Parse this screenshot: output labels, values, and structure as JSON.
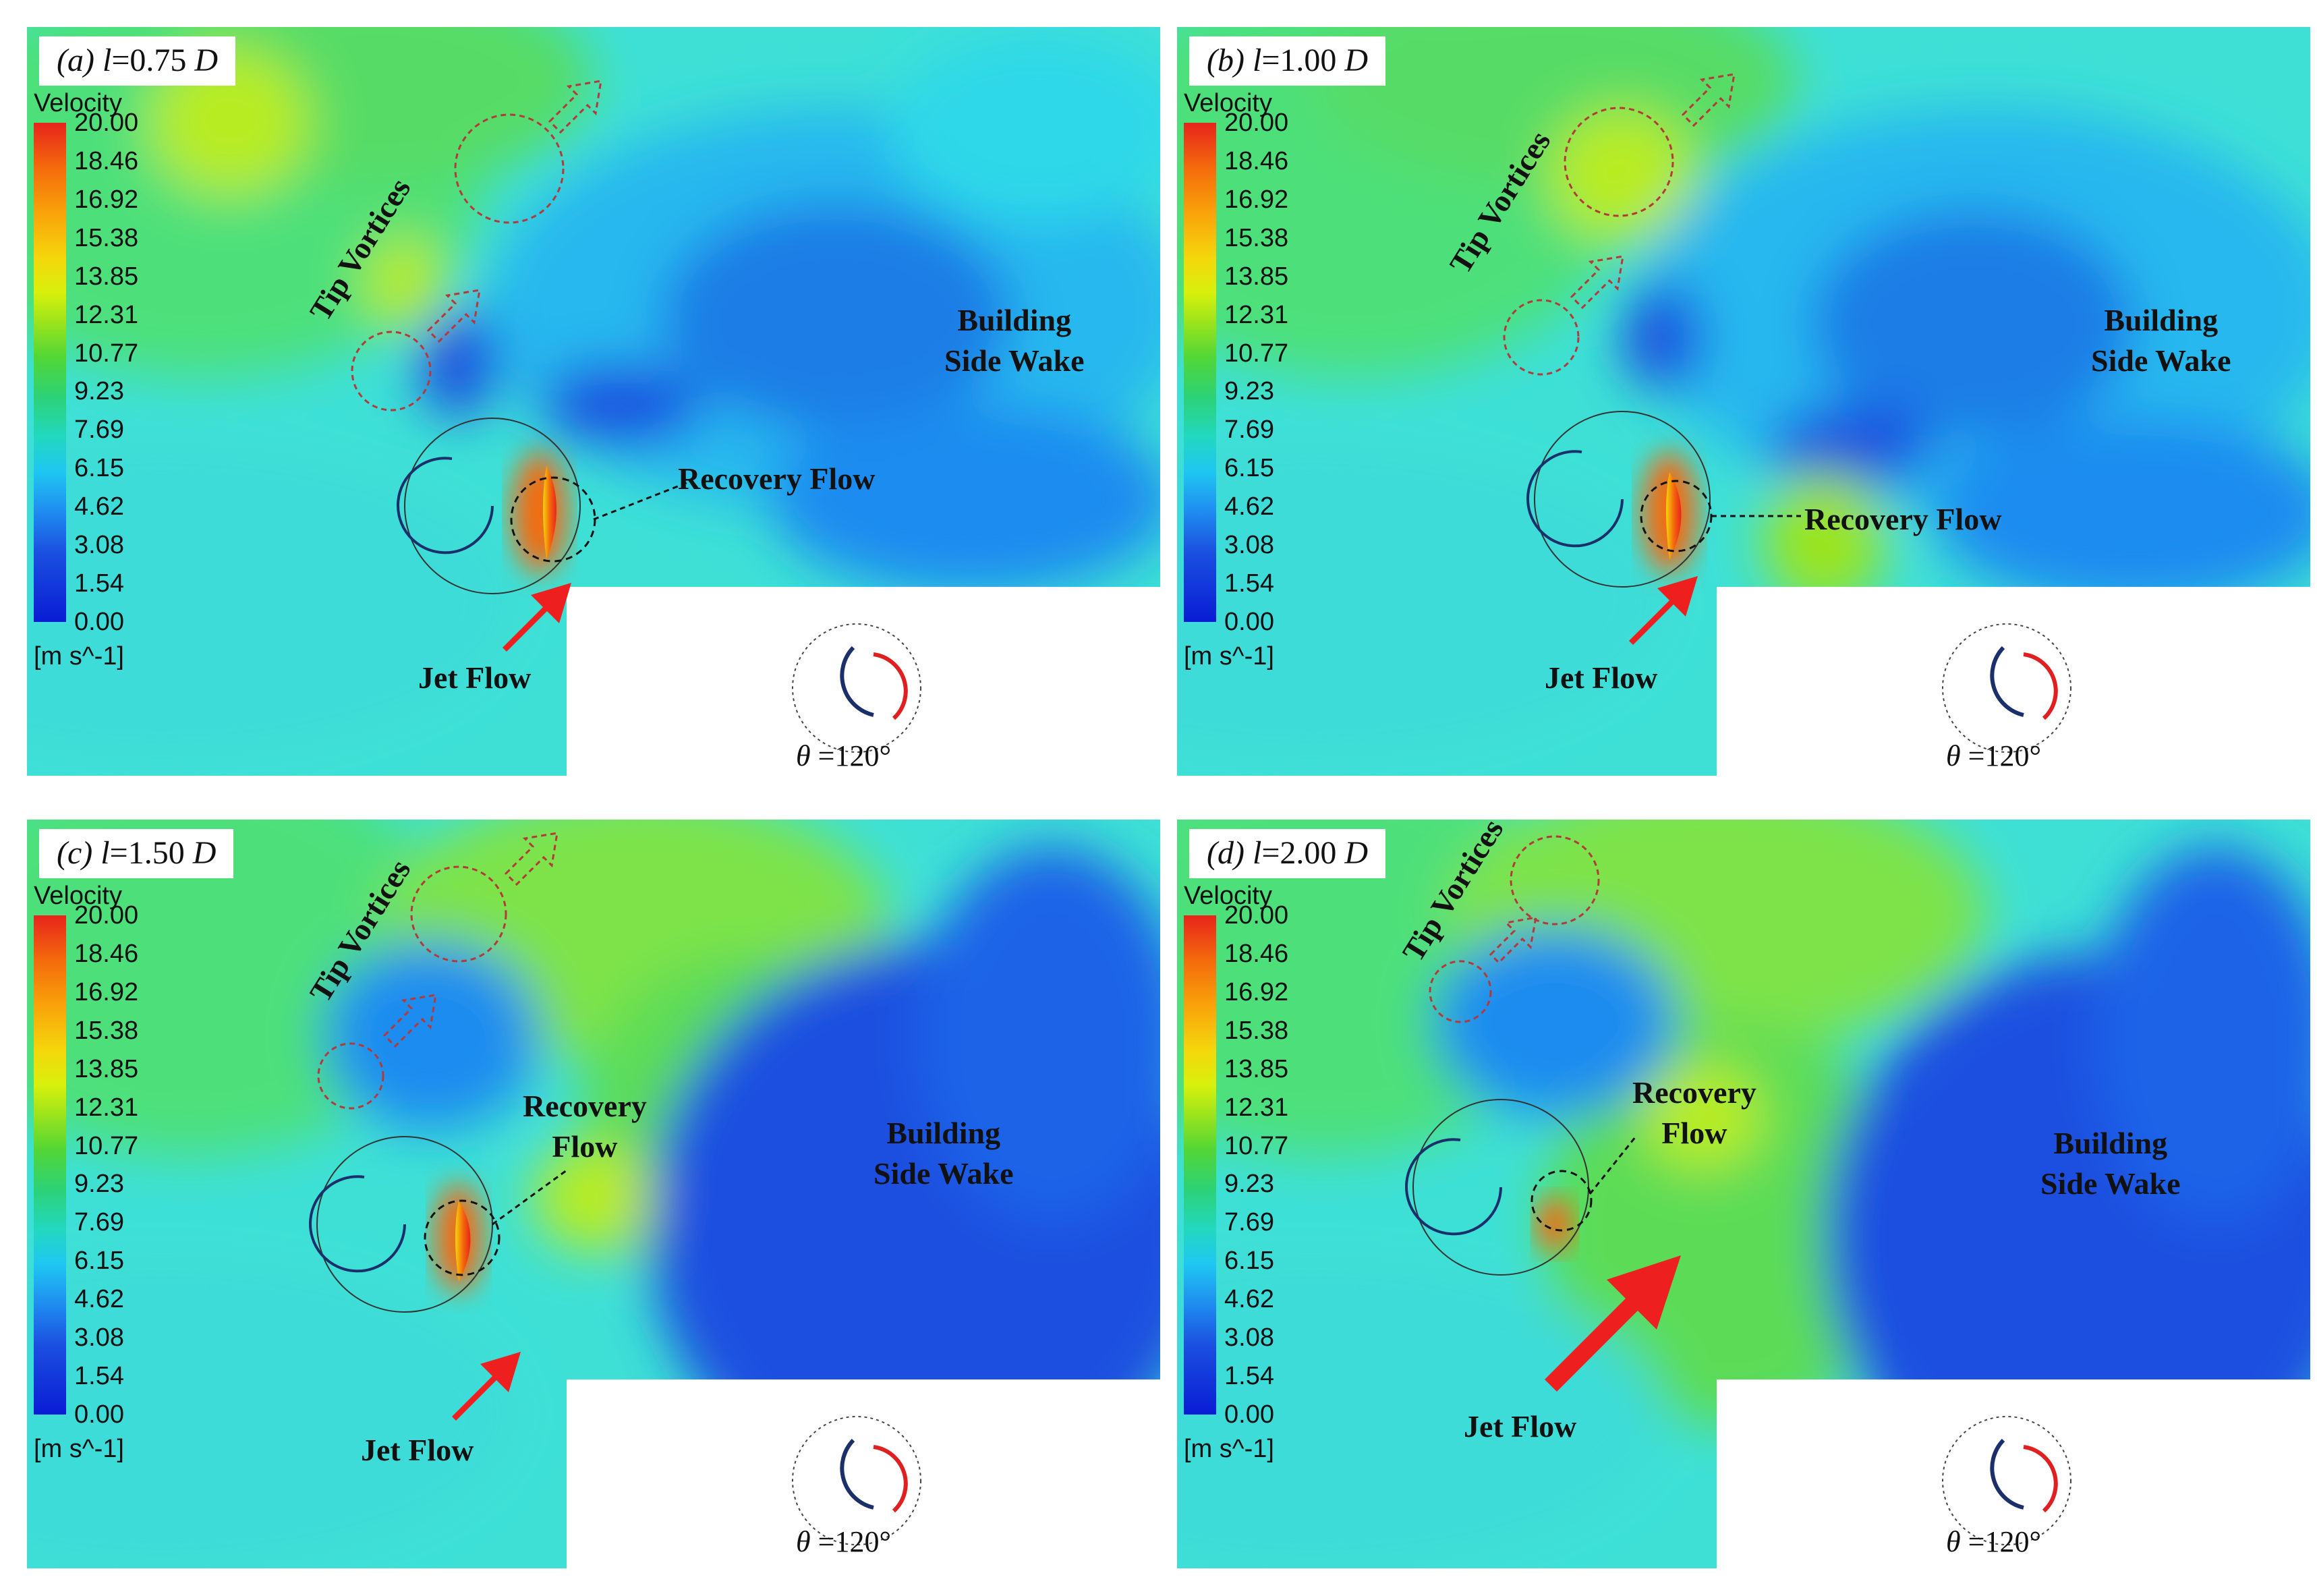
{
  "colorbar": {
    "title": "Velocity",
    "ticks": [
      "20.00",
      "18.46",
      "16.92",
      "15.38",
      "13.85",
      "12.31",
      "10.77",
      "9.23",
      "7.69",
      "6.15",
      "4.62",
      "3.08",
      "1.54",
      "0.00"
    ],
    "unit": "[m s^-1]",
    "colors": [
      "#e8241c",
      "#f46a0c",
      "#f9a20a",
      "#f5d60c",
      "#d8f00c",
      "#9be41c",
      "#52d636",
      "#2cd277",
      "#22d8c0",
      "#1fc6f2",
      "#1f8cf0",
      "#1b50e0",
      "#0a1cd4"
    ]
  },
  "labels": {
    "tip_vortices": "Tip Vortices",
    "recovery_flow": "Recovery Flow",
    "recovery_line1": "Recovery",
    "recovery_line2": "Flow",
    "jet_flow": "Jet Flow",
    "building_line1": "Building",
    "building_line2": "Side Wake",
    "theta_symbol": "θ",
    "theta_value": " =120°"
  },
  "panels": [
    {
      "tag": "(a)",
      "l": "l",
      "value": "=0.75",
      "unit": "D"
    },
    {
      "tag": "(b)",
      "l": "l",
      "value": "=1.00",
      "unit": "D"
    },
    {
      "tag": "(c)",
      "l": "l",
      "value": "=1.50",
      "unit": "D"
    },
    {
      "tag": "(d)",
      "l": "l",
      "value": "=2.00",
      "unit": "D"
    }
  ],
  "annotation_colors": {
    "arrow": "#ee1f1f",
    "dashed_circle": "#b33a3a",
    "blade": "#1b2f6b",
    "blade_red": "#e02020"
  }
}
